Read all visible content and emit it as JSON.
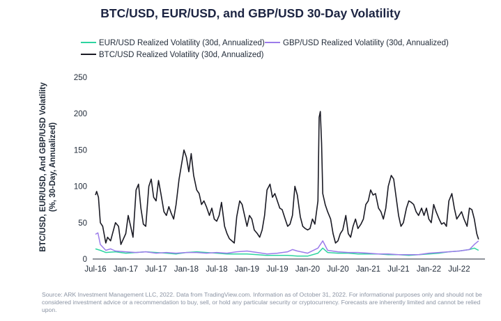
{
  "chart_data": {
    "type": "line",
    "title": "BTC/USD, EUR/USD, and GBP/USD 30-Day Volatility",
    "ylabel_line1": "BTC/USD, EUR/USD, And GBP/USD Volatility",
    "ylabel_line2": "(%, 30-Day, Annualized)",
    "xlabel": "",
    "ylim": [
      0,
      250
    ],
    "yticks": [
      0,
      50,
      100,
      150,
      200,
      250
    ],
    "xlim": [
      2016.5,
      2022.88
    ],
    "xticks": [
      {
        "x": 2016.5,
        "label": "Jul-16"
      },
      {
        "x": 2017.0,
        "label": "Jan-17"
      },
      {
        "x": 2017.5,
        "label": "Jul-17"
      },
      {
        "x": 2018.0,
        "label": "Jan-18"
      },
      {
        "x": 2018.5,
        "label": "Jul-18"
      },
      {
        "x": 2019.0,
        "label": "Jan-19"
      },
      {
        "x": 2019.5,
        "label": "Jul-19"
      },
      {
        "x": 2020.0,
        "label": "Jan-20"
      },
      {
        "x": 2020.5,
        "label": "Jul-20"
      },
      {
        "x": 2021.0,
        "label": "Jan-21"
      },
      {
        "x": 2021.5,
        "label": "Jul-21"
      },
      {
        "x": 2022.0,
        "label": "Jan-22"
      },
      {
        "x": 2022.5,
        "label": "Jul-22"
      }
    ],
    "legend": [
      {
        "name": "EUR/USD Realized Volatility (30d, Annualized)",
        "color": "#2dd4a0"
      },
      {
        "name": "GBP/USD Realized Volatility (30d, Annualized)",
        "color": "#9b7bea"
      },
      {
        "name": "BTC/USD Realized Volatility (30d, Annualized)",
        "color": "#1a1a24"
      }
    ],
    "series": [
      {
        "name": "EUR/USD Realized Volatility (30d, Annualized)",
        "color": "#2dd4a0",
        "points": [
          [
            2016.5,
            14
          ],
          [
            2016.58,
            12
          ],
          [
            2016.67,
            9
          ],
          [
            2016.83,
            10
          ],
          [
            2017.0,
            8
          ],
          [
            2017.17,
            9
          ],
          [
            2017.33,
            10
          ],
          [
            2017.5,
            9
          ],
          [
            2017.67,
            8
          ],
          [
            2017.83,
            7
          ],
          [
            2018.0,
            9
          ],
          [
            2018.17,
            10
          ],
          [
            2018.33,
            9
          ],
          [
            2018.5,
            8
          ],
          [
            2018.67,
            7
          ],
          [
            2018.83,
            7
          ],
          [
            2019.0,
            7
          ],
          [
            2019.17,
            6
          ],
          [
            2019.33,
            5
          ],
          [
            2019.5,
            5
          ],
          [
            2019.67,
            5
          ],
          [
            2019.83,
            4
          ],
          [
            2020.0,
            4
          ],
          [
            2020.17,
            8
          ],
          [
            2020.25,
            15
          ],
          [
            2020.33,
            9
          ],
          [
            2020.5,
            8
          ],
          [
            2020.67,
            8
          ],
          [
            2020.83,
            7
          ],
          [
            2021.0,
            7
          ],
          [
            2021.17,
            7
          ],
          [
            2021.33,
            6
          ],
          [
            2021.5,
            6
          ],
          [
            2021.67,
            5
          ],
          [
            2021.83,
            6
          ],
          [
            2022.0,
            7
          ],
          [
            2022.17,
            8
          ],
          [
            2022.33,
            10
          ],
          [
            2022.5,
            11
          ],
          [
            2022.67,
            13
          ],
          [
            2022.75,
            15
          ],
          [
            2022.82,
            12
          ]
        ]
      },
      {
        "name": "GBP/USD Realized Volatility (30d, Annualized)",
        "color": "#9b7bea",
        "points": [
          [
            2016.5,
            34
          ],
          [
            2016.54,
            36
          ],
          [
            2016.58,
            20
          ],
          [
            2016.67,
            12
          ],
          [
            2016.75,
            14
          ],
          [
            2016.83,
            11
          ],
          [
            2017.0,
            10
          ],
          [
            2017.17,
            9
          ],
          [
            2017.33,
            10
          ],
          [
            2017.5,
            8
          ],
          [
            2017.67,
            9
          ],
          [
            2017.83,
            8
          ],
          [
            2018.0,
            9
          ],
          [
            2018.17,
            9
          ],
          [
            2018.33,
            8
          ],
          [
            2018.5,
            9
          ],
          [
            2018.67,
            8
          ],
          [
            2018.83,
            10
          ],
          [
            2019.0,
            11
          ],
          [
            2019.17,
            9
          ],
          [
            2019.33,
            7
          ],
          [
            2019.5,
            8
          ],
          [
            2019.67,
            10
          ],
          [
            2019.75,
            13
          ],
          [
            2019.83,
            11
          ],
          [
            2020.0,
            8
          ],
          [
            2020.17,
            15
          ],
          [
            2020.25,
            25
          ],
          [
            2020.33,
            12
          ],
          [
            2020.5,
            10
          ],
          [
            2020.67,
            9
          ],
          [
            2020.83,
            9
          ],
          [
            2021.0,
            8
          ],
          [
            2021.17,
            7
          ],
          [
            2021.33,
            7
          ],
          [
            2021.5,
            6
          ],
          [
            2021.67,
            6
          ],
          [
            2021.83,
            6
          ],
          [
            2022.0,
            8
          ],
          [
            2022.17,
            9
          ],
          [
            2022.33,
            10
          ],
          [
            2022.5,
            11
          ],
          [
            2022.67,
            13
          ],
          [
            2022.75,
            20
          ],
          [
            2022.82,
            25
          ]
        ]
      },
      {
        "name": "BTC/USD Realized Volatility (30d, Annualized)",
        "color": "#1a1a24",
        "points": [
          [
            2016.5,
            88
          ],
          [
            2016.52,
            93
          ],
          [
            2016.55,
            85
          ],
          [
            2016.58,
            50
          ],
          [
            2016.62,
            45
          ],
          [
            2016.67,
            22
          ],
          [
            2016.7,
            30
          ],
          [
            2016.75,
            25
          ],
          [
            2016.83,
            50
          ],
          [
            2016.88,
            45
          ],
          [
            2016.92,
            20
          ],
          [
            2017.0,
            35
          ],
          [
            2017.04,
            60
          ],
          [
            2017.08,
            45
          ],
          [
            2017.12,
            30
          ],
          [
            2017.17,
            95
          ],
          [
            2017.21,
            103
          ],
          [
            2017.25,
            70
          ],
          [
            2017.29,
            48
          ],
          [
            2017.33,
            45
          ],
          [
            2017.38,
            100
          ],
          [
            2017.42,
            110
          ],
          [
            2017.46,
            85
          ],
          [
            2017.5,
            80
          ],
          [
            2017.54,
            108
          ],
          [
            2017.58,
            90
          ],
          [
            2017.63,
            65
          ],
          [
            2017.67,
            60
          ],
          [
            2017.71,
            72
          ],
          [
            2017.75,
            63
          ],
          [
            2017.79,
            55
          ],
          [
            2017.83,
            75
          ],
          [
            2017.88,
            110
          ],
          [
            2017.92,
            130
          ],
          [
            2017.96,
            150
          ],
          [
            2018.0,
            140
          ],
          [
            2018.04,
            120
          ],
          [
            2018.08,
            145
          ],
          [
            2018.12,
            115
          ],
          [
            2018.17,
            95
          ],
          [
            2018.21,
            90
          ],
          [
            2018.25,
            75
          ],
          [
            2018.29,
            80
          ],
          [
            2018.33,
            72
          ],
          [
            2018.38,
            60
          ],
          [
            2018.42,
            70
          ],
          [
            2018.46,
            55
          ],
          [
            2018.5,
            52
          ],
          [
            2018.54,
            60
          ],
          [
            2018.58,
            78
          ],
          [
            2018.63,
            45
          ],
          [
            2018.67,
            35
          ],
          [
            2018.71,
            28
          ],
          [
            2018.75,
            25
          ],
          [
            2018.79,
            22
          ],
          [
            2018.83,
            58
          ],
          [
            2018.88,
            80
          ],
          [
            2018.92,
            75
          ],
          [
            2018.96,
            60
          ],
          [
            2019.0,
            45
          ],
          [
            2019.04,
            60
          ],
          [
            2019.08,
            55
          ],
          [
            2019.12,
            40
          ],
          [
            2019.17,
            35
          ],
          [
            2019.21,
            30
          ],
          [
            2019.25,
            40
          ],
          [
            2019.29,
            60
          ],
          [
            2019.33,
            95
          ],
          [
            2019.38,
            103
          ],
          [
            2019.42,
            85
          ],
          [
            2019.46,
            90
          ],
          [
            2019.5,
            80
          ],
          [
            2019.54,
            70
          ],
          [
            2019.58,
            68
          ],
          [
            2019.63,
            55
          ],
          [
            2019.67,
            45
          ],
          [
            2019.71,
            48
          ],
          [
            2019.75,
            60
          ],
          [
            2019.79,
            100
          ],
          [
            2019.83,
            88
          ],
          [
            2019.88,
            58
          ],
          [
            2019.92,
            45
          ],
          [
            2019.96,
            42
          ],
          [
            2020.0,
            40
          ],
          [
            2020.04,
            42
          ],
          [
            2020.08,
            55
          ],
          [
            2020.12,
            48
          ],
          [
            2020.17,
            80
          ],
          [
            2020.19,
            195
          ],
          [
            2020.21,
            203
          ],
          [
            2020.23,
            160
          ],
          [
            2020.25,
            90
          ],
          [
            2020.29,
            75
          ],
          [
            2020.33,
            65
          ],
          [
            2020.38,
            55
          ],
          [
            2020.42,
            35
          ],
          [
            2020.46,
            22
          ],
          [
            2020.5,
            25
          ],
          [
            2020.54,
            35
          ],
          [
            2020.58,
            40
          ],
          [
            2020.63,
            60
          ],
          [
            2020.67,
            35
          ],
          [
            2020.71,
            30
          ],
          [
            2020.75,
            45
          ],
          [
            2020.79,
            55
          ],
          [
            2020.83,
            42
          ],
          [
            2020.88,
            48
          ],
          [
            2020.92,
            55
          ],
          [
            2020.96,
            75
          ],
          [
            2021.0,
            80
          ],
          [
            2021.04,
            95
          ],
          [
            2021.08,
            88
          ],
          [
            2021.12,
            90
          ],
          [
            2021.17,
            70
          ],
          [
            2021.21,
            65
          ],
          [
            2021.25,
            55
          ],
          [
            2021.29,
            70
          ],
          [
            2021.33,
            100
          ],
          [
            2021.38,
            115
          ],
          [
            2021.42,
            110
          ],
          [
            2021.46,
            85
          ],
          [
            2021.5,
            60
          ],
          [
            2021.54,
            45
          ],
          [
            2021.58,
            50
          ],
          [
            2021.63,
            70
          ],
          [
            2021.67,
            80
          ],
          [
            2021.71,
            78
          ],
          [
            2021.75,
            75
          ],
          [
            2021.79,
            65
          ],
          [
            2021.83,
            60
          ],
          [
            2021.88,
            70
          ],
          [
            2021.92,
            60
          ],
          [
            2021.96,
            70
          ],
          [
            2022.0,
            55
          ],
          [
            2022.04,
            50
          ],
          [
            2022.08,
            75
          ],
          [
            2022.12,
            65
          ],
          [
            2022.17,
            55
          ],
          [
            2022.21,
            48
          ],
          [
            2022.25,
            50
          ],
          [
            2022.29,
            45
          ],
          [
            2022.33,
            80
          ],
          [
            2022.38,
            90
          ],
          [
            2022.42,
            70
          ],
          [
            2022.46,
            55
          ],
          [
            2022.5,
            60
          ],
          [
            2022.54,
            65
          ],
          [
            2022.58,
            55
          ],
          [
            2022.63,
            45
          ],
          [
            2022.67,
            70
          ],
          [
            2022.71,
            68
          ],
          [
            2022.75,
            55
          ],
          [
            2022.79,
            35
          ],
          [
            2022.82,
            27
          ]
        ]
      }
    ]
  },
  "footnote": "Source: ARK Investment Management LLC, 2022. Data from TradingView.com. Information as of October 31, 2022. For informational purposes only and should not be considered investment advice or a recommendation to buy, sell, or hold any particular security or cryptocurrency. Forecasts are inherently limited and cannot be relied upon."
}
